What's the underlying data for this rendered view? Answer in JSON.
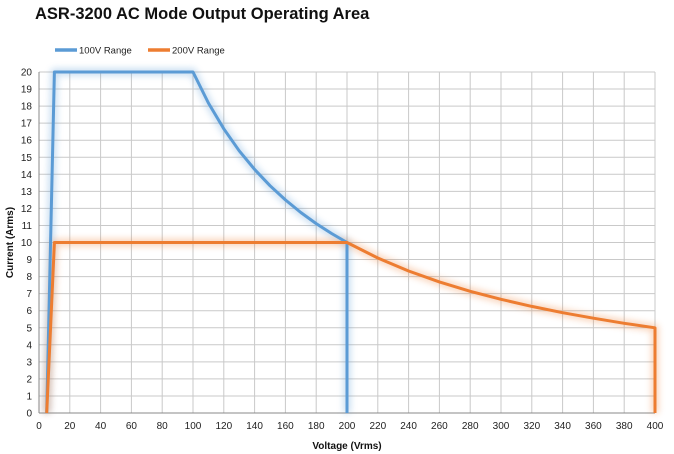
{
  "chart_data": {
    "type": "line",
    "title": "ASR-3200 AC Mode Output Operating Area",
    "xlabel": "Voltage (Vrms)",
    "ylabel": "Current (Arms)",
    "xlim": [
      0,
      400
    ],
    "ylim": [
      0,
      20
    ],
    "xticks": [
      0,
      20,
      40,
      60,
      80,
      100,
      120,
      140,
      160,
      180,
      200,
      220,
      240,
      260,
      280,
      300,
      320,
      340,
      360,
      380,
      400
    ],
    "yticks": [
      0,
      1,
      2,
      3,
      4,
      5,
      6,
      7,
      8,
      9,
      10,
      11,
      12,
      13,
      14,
      15,
      16,
      17,
      18,
      19,
      20
    ],
    "grid": true,
    "legend_position": "top-left",
    "series": [
      {
        "name": "100V Range",
        "color": "#5b9bd5",
        "x": [
          5,
          10,
          100,
          110,
          120,
          130,
          140,
          150,
          160,
          170,
          180,
          190,
          200,
          200
        ],
        "y": [
          0,
          20,
          20,
          18.18,
          16.67,
          15.38,
          14.29,
          13.33,
          12.5,
          11.76,
          11.11,
          10.53,
          10,
          0
        ]
      },
      {
        "name": "200V Range",
        "color": "#ed7d31",
        "x": [
          5,
          10,
          200,
          220,
          240,
          260,
          280,
          300,
          320,
          340,
          360,
          380,
          400,
          400
        ],
        "y": [
          0,
          10,
          10,
          9.09,
          8.33,
          7.69,
          7.14,
          6.67,
          6.25,
          5.88,
          5.56,
          5.26,
          5,
          0
        ]
      }
    ]
  }
}
